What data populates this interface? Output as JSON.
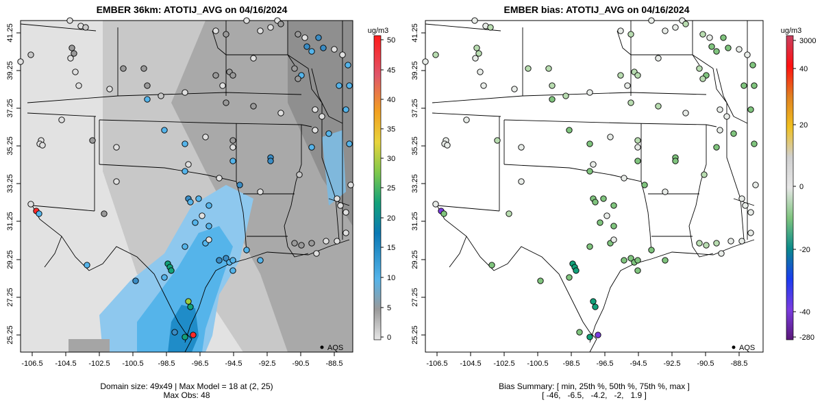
{
  "left_panel": {
    "title": "EMBER 36km: ATOTIJ_AVG on 04/16/2024",
    "caption_line1": "Domain size: 49x49 | Max Model = 18 at (2, 25)",
    "caption_line2": "Max Obs: 48",
    "legend_unit": "ug/m3",
    "legend_ticks": [
      "50",
      "45",
      "40",
      "35",
      "30",
      "25",
      "20",
      "15",
      "10",
      "5",
      "0"
    ],
    "obs_label": "AQS"
  },
  "right_panel": {
    "title": "EMBER bias: ATOTIJ_AVG on 04/16/2024",
    "caption_line1": "Bias Summary: [ min, 25th %, 50th %, 75th %, max ]",
    "caption_line2": "[ -46,   -6.5,   -4.2,   -2,   1.9 ]",
    "legend_unit": "ug/m3",
    "legend_ticks": [
      "3000",
      "40",
      "20",
      "0",
      "-20",
      "-40",
      "-280"
    ],
    "obs_label": "AQS"
  },
  "axes": {
    "x_ticks": [
      "-106.5",
      "-104.5",
      "-102.5",
      "-100.5",
      "-98.5",
      "-96.5",
      "-94.5",
      "-92.5",
      "-90.5",
      "-88.5"
    ],
    "y_ticks": [
      "41.25",
      "39.25",
      "37.25",
      "35.25",
      "33.25",
      "31.25",
      "29.25",
      "27.25",
      "25.25"
    ]
  },
  "colors": {
    "concentration_scale": [
      "#e0e0e0",
      "#9a9a9a",
      "#55b4ea",
      "#0a78b4",
      "#13a17a",
      "#7ec84c",
      "#e8d43c",
      "#f2a020",
      "#e0566a",
      "#ff1a1a"
    ],
    "bias_scale": [
      "#5a1878",
      "#7a3ce0",
      "#1a3cf0",
      "#0a8a8a",
      "#7ec47e",
      "#e6e6e6",
      "#d0d0d0",
      "#f0c020",
      "#e08020",
      "#ff1010",
      "#c84060"
    ]
  }
}
